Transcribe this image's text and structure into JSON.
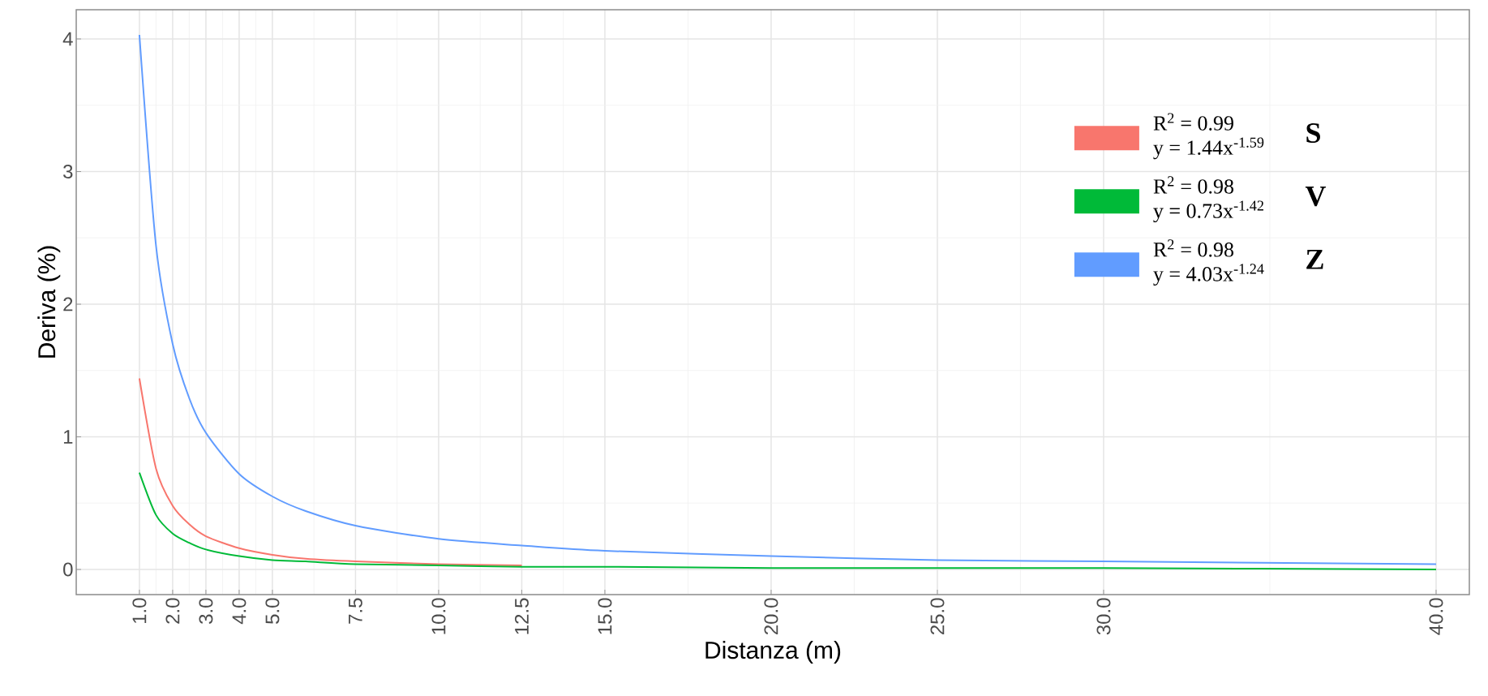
{
  "chart_data": {
    "type": "line",
    "xlabel": "Distanza (m)",
    "ylabel": "Deriva (%)",
    "xlim": [
      -0.9,
      41
    ],
    "ylim": [
      -0.19,
      4.22
    ],
    "xticks": [
      {
        "value": 1,
        "label": "1.0"
      },
      {
        "value": 2,
        "label": "2.0"
      },
      {
        "value": 3,
        "label": "3.0"
      },
      {
        "value": 4,
        "label": "4.0"
      },
      {
        "value": 5,
        "label": "5.0"
      },
      {
        "value": 7.5,
        "label": "7.5"
      },
      {
        "value": 10,
        "label": "10.0"
      },
      {
        "value": 12.5,
        "label": "12.5"
      },
      {
        "value": 15,
        "label": "15.0"
      },
      {
        "value": 20,
        "label": "20.0"
      },
      {
        "value": 25,
        "label": "25.0"
      },
      {
        "value": 30,
        "label": "30.0"
      },
      {
        "value": 40,
        "label": "40.0"
      }
    ],
    "yticks": [
      0,
      1,
      2,
      3,
      4
    ],
    "x": [
      1,
      1.5,
      2,
      2.5,
      3,
      4,
      5,
      6,
      7.5,
      10,
      12.5,
      15,
      20,
      25,
      30,
      40
    ],
    "series": [
      {
        "name": "y = 1.44x$^{-1.59}$",
        "color": "#f8766d",
        "values": [
          1.44,
          0.76,
          0.48,
          0.34,
          0.25,
          0.16,
          0.11,
          0.08,
          0.06,
          0.04,
          0.03,
          null,
          null,
          null,
          null,
          null
        ]
      },
      {
        "name": "y = 0.73x$^{-1.42}$",
        "color": "#00ba38",
        "values": [
          0.73,
          0.41,
          0.27,
          0.2,
          0.15,
          0.1,
          0.07,
          0.06,
          0.04,
          0.03,
          0.02,
          0.02,
          0.01,
          0.01,
          0.01,
          0.0
        ]
      },
      {
        "name": "y = 4.03x$^{-1.24}$",
        "color": "#619cff",
        "values": [
          4.03,
          2.44,
          1.7,
          1.29,
          1.03,
          0.72,
          0.55,
          0.44,
          0.33,
          0.23,
          0.18,
          0.14,
          0.1,
          0.07,
          0.06,
          0.04
        ]
      }
    ],
    "annotations": [
      "R$^{2}$ = 0.99",
      "R$^{2}$ = 0.98",
      "R$^{2}$ = 0.98",
      "**S**",
      "**V**",
      "**Z**"
    ],
    "grid": true,
    "legend": "top right",
    "line_style": "solid"
  }
}
